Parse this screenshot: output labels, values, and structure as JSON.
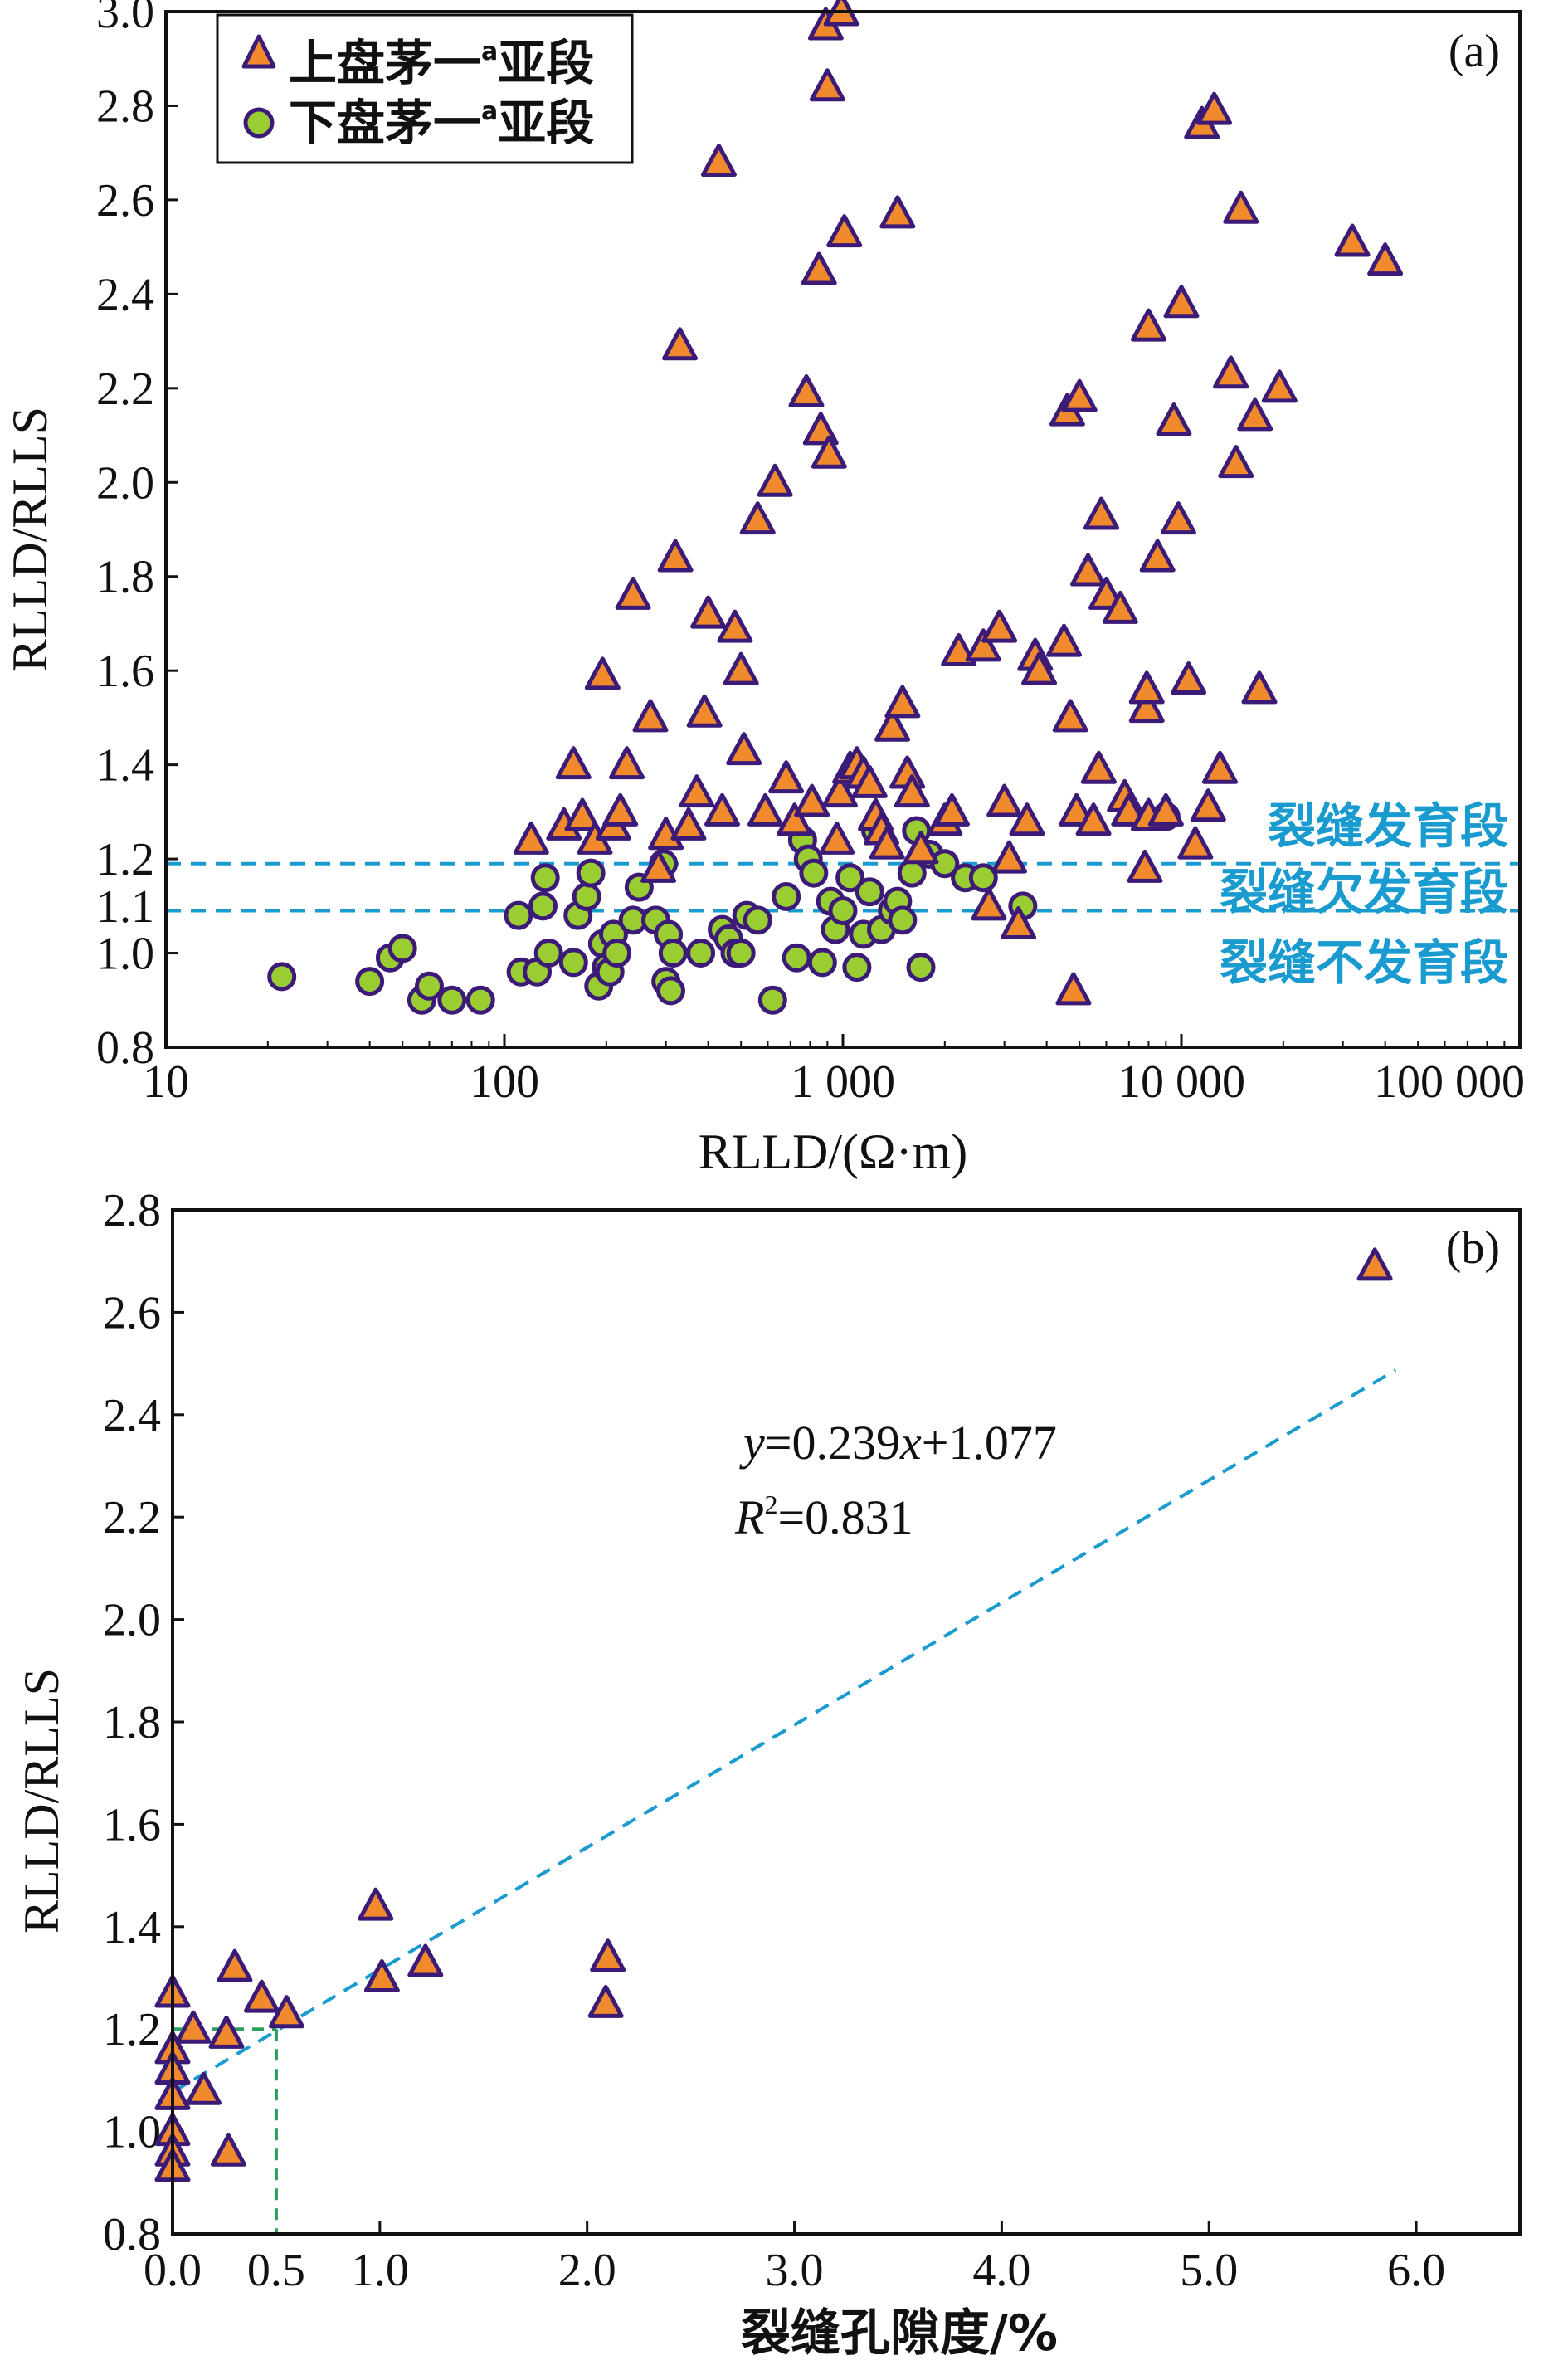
{
  "colors": {
    "triangle_fill": "#f08a2c",
    "triangle_stroke": "#3c1a78",
    "circle_fill": "#9acd32",
    "circle_stroke": "#3c1a78",
    "threshold_line": "#1a9bd0",
    "zone_text": "#1a9bd0",
    "highlight_red": "#c0143c",
    "vertical_guide": "#2aa05a"
  },
  "chart_data": [
    {
      "type": "scatter",
      "panel": "(a)",
      "xlabel": "RLLD/(Ω·m)",
      "ylabel": "RLLD/RLLS",
      "x_scale": "log",
      "xlim": [
        10,
        100000
      ],
      "ylim": [
        0.8,
        3.0
      ],
      "x_ticks": [
        {
          "value": 10,
          "label": "10"
        },
        {
          "value": 100,
          "label": "100"
        },
        {
          "value": 1000,
          "label": "1 000"
        },
        {
          "value": 10000,
          "label": "10 000"
        },
        {
          "value": 100000,
          "label": "100 000"
        }
      ],
      "y_ticks": [
        {
          "value": 0.8,
          "label": "0.8"
        },
        {
          "value": 1.0,
          "label": "1.0"
        },
        {
          "value": 1.2,
          "label": "1.2"
        },
        {
          "value": 1.4,
          "label": "1.4"
        },
        {
          "value": 1.6,
          "label": "1.6"
        },
        {
          "value": 1.8,
          "label": "1.8"
        },
        {
          "value": 2.0,
          "label": "2.0"
        },
        {
          "value": 2.2,
          "label": "2.2"
        },
        {
          "value": 2.4,
          "label": "2.4"
        },
        {
          "value": 2.6,
          "label": "2.6"
        },
        {
          "value": 2.8,
          "label": "2.8"
        },
        {
          "value": 3.0,
          "label": "3.0"
        }
      ],
      "extra_y_label": {
        "value": 1.1,
        "label": "1.1"
      },
      "threshold_lines": [
        1.19,
        1.09
      ],
      "zone_labels": [
        {
          "text": "裂缝发育段",
          "y": 1.27
        },
        {
          "text": "裂缝欠发育段",
          "y": 1.13
        },
        {
          "text": "裂缝不发育段",
          "y": 0.98
        }
      ],
      "legend": {
        "entries": [
          {
            "marker": "triangle",
            "name": "上盘茅一",
            "sup": "a",
            "suffix": "亚段"
          },
          {
            "marker": "circle",
            "name": "下盘茅一",
            "sup": "a",
            "suffix": "亚段"
          }
        ],
        "placement": "top-left"
      },
      "series": [
        {
          "name": "上盘茅一ª亚段",
          "marker": "triangle",
          "points": [
            [
              120,
              1.24
            ],
            [
              150,
              1.27
            ],
            [
              160,
              1.4
            ],
            [
              170,
              1.29
            ],
            [
              185,
              1.24
            ],
            [
              195,
              1.59
            ],
            [
              210,
              1.27
            ],
            [
              220,
              1.3
            ],
            [
              230,
              1.4
            ],
            [
              240,
              1.76
            ],
            [
              270,
              1.5
            ],
            [
              285,
              1.18
            ],
            [
              300,
              1.25
            ],
            [
              320,
              1.84
            ],
            [
              330,
              2.29
            ],
            [
              350,
              1.27
            ],
            [
              370,
              1.34
            ],
            [
              390,
              1.51
            ],
            [
              400,
              1.72
            ],
            [
              430,
              2.68
            ],
            [
              440,
              1.3
            ],
            [
              480,
              1.69
            ],
            [
              500,
              1.6
            ],
            [
              510,
              1.43
            ],
            [
              560,
              1.92
            ],
            [
              590,
              1.3
            ],
            [
              630,
              2.0
            ],
            [
              680,
              1.37
            ],
            [
              720,
              1.28
            ],
            [
              780,
              2.19
            ],
            [
              810,
              1.32
            ],
            [
              850,
              2.45
            ],
            [
              860,
              2.11
            ],
            [
              890,
              2.97
            ],
            [
              900,
              2.84
            ],
            [
              910,
              2.06
            ],
            [
              960,
              1.24
            ],
            [
              980,
              1.34
            ],
            [
              990,
              3.0
            ],
            [
              1010,
              2.53
            ],
            [
              1050,
              1.39
            ],
            [
              1100,
              1.4
            ],
            [
              1150,
              1.38
            ],
            [
              1200,
              1.36
            ],
            [
              1250,
              1.29
            ],
            [
              1300,
              1.26
            ],
            [
              1350,
              1.23
            ],
            [
              1400,
              1.48
            ],
            [
              1450,
              2.57
            ],
            [
              1500,
              1.53
            ],
            [
              1550,
              1.38
            ],
            [
              1600,
              1.34
            ],
            [
              1700,
              1.22
            ],
            [
              2000,
              1.28
            ],
            [
              2100,
              1.3
            ],
            [
              2200,
              1.64
            ],
            [
              2600,
              1.65
            ],
            [
              2700,
              1.1
            ],
            [
              2900,
              1.69
            ],
            [
              3000,
              1.32
            ],
            [
              3100,
              1.2
            ],
            [
              3300,
              1.06
            ],
            [
              3500,
              1.28
            ],
            [
              3700,
              1.63
            ],
            [
              3800,
              1.6
            ],
            [
              4500,
              1.66
            ],
            [
              4600,
              2.15
            ],
            [
              4700,
              1.5
            ],
            [
              4900,
              1.3
            ],
            [
              5000,
              2.18
            ],
            [
              5300,
              1.81
            ],
            [
              5500,
              1.28
            ],
            [
              5700,
              1.39
            ],
            [
              5800,
              1.93
            ],
            [
              6000,
              1.76
            ],
            [
              6600,
              1.73
            ],
            [
              6800,
              1.33
            ],
            [
              7000,
              1.3
            ],
            [
              7800,
              1.18
            ],
            [
              7900,
              1.52
            ],
            [
              8000,
              1.29
            ],
            [
              8000,
              2.33
            ],
            [
              8500,
              1.84
            ],
            [
              9000,
              1.3
            ],
            [
              9500,
              2.13
            ],
            [
              9800,
              1.92
            ],
            [
              10000,
              2.38
            ],
            [
              10500,
              1.58
            ],
            [
              11000,
              1.23
            ],
            [
              11500,
              2.76
            ],
            [
              12000,
              1.31
            ],
            [
              12500,
              2.79
            ],
            [
              13000,
              1.39
            ],
            [
              14000,
              2.23
            ],
            [
              14500,
              2.04
            ],
            [
              15000,
              2.58
            ],
            [
              16500,
              2.14
            ],
            [
              17000,
              1.56
            ],
            [
              19500,
              2.2
            ],
            [
              32000,
              2.51
            ],
            [
              40000,
              2.47
            ],
            [
              4800,
              0.92
            ],
            [
              7900,
              1.56
            ]
          ]
        },
        {
          "name": "下盘茅一ª亚段",
          "marker": "circle",
          "points": [
            [
              22,
              0.95
            ],
            [
              40,
              0.94
            ],
            [
              46,
              0.99
            ],
            [
              50,
              1.01
            ],
            [
              57,
              0.9
            ],
            [
              60,
              0.93
            ],
            [
              70,
              0.9
            ],
            [
              85,
              0.9
            ],
            [
              110,
              1.08
            ],
            [
              112,
              0.96
            ],
            [
              125,
              0.96
            ],
            [
              130,
              1.1
            ],
            [
              132,
              1.16
            ],
            [
              135,
              1.0
            ],
            [
              160,
              0.98
            ],
            [
              165,
              1.08
            ],
            [
              175,
              1.12
            ],
            [
              180,
              1.17
            ],
            [
              190,
              0.93
            ],
            [
              195,
              1.02
            ],
            [
              200,
              0.97
            ],
            [
              205,
              0.96
            ],
            [
              210,
              1.04
            ],
            [
              215,
              1.0
            ],
            [
              240,
              1.07
            ],
            [
              250,
              1.14
            ],
            [
              280,
              1.07
            ],
            [
              295,
              1.19
            ],
            [
              300,
              0.94
            ],
            [
              305,
              1.04
            ],
            [
              310,
              0.92
            ],
            [
              315,
              1.0
            ],
            [
              380,
              1.0
            ],
            [
              440,
              1.05
            ],
            [
              460,
              1.03
            ],
            [
              480,
              1.0
            ],
            [
              500,
              1.0
            ],
            [
              520,
              1.08
            ],
            [
              560,
              1.07
            ],
            [
              620,
              0.9
            ],
            [
              680,
              1.12
            ],
            [
              730,
              0.99
            ],
            [
              760,
              1.24
            ],
            [
              790,
              1.2
            ],
            [
              820,
              1.17
            ],
            [
              870,
              0.98
            ],
            [
              920,
              1.11
            ],
            [
              950,
              1.05
            ],
            [
              1000,
              1.09
            ],
            [
              1050,
              1.16
            ],
            [
              1100,
              0.97
            ],
            [
              1150,
              1.04
            ],
            [
              1200,
              1.13
            ],
            [
              1250,
              1.26
            ],
            [
              1300,
              1.05
            ],
            [
              1400,
              1.09
            ],
            [
              1450,
              1.11
            ],
            [
              1500,
              1.07
            ],
            [
              1600,
              1.17
            ],
            [
              1650,
              1.26
            ],
            [
              1700,
              0.97
            ],
            [
              1800,
              1.21
            ],
            [
              2000,
              1.19
            ],
            [
              2300,
              1.16
            ],
            [
              2600,
              1.16
            ],
            [
              3400,
              1.1
            ],
            [
              9000,
              1.29
            ]
          ]
        }
      ]
    },
    {
      "type": "scatter",
      "panel": "(b)",
      "xlabel": "裂缝孔隙度/%",
      "ylabel": "RLLD/RLLS",
      "xlim": [
        0.0,
        6.5
      ],
      "ylim": [
        0.8,
        2.8
      ],
      "x_ticks": [
        {
          "value": 0.0,
          "label": "0.0"
        },
        {
          "value": 1.0,
          "label": "1.0"
        },
        {
          "value": 2.0,
          "label": "2.0"
        },
        {
          "value": 3.0,
          "label": "3.0"
        },
        {
          "value": 4.0,
          "label": "4.0"
        },
        {
          "value": 5.0,
          "label": "5.0"
        },
        {
          "value": 6.0,
          "label": "6.0"
        }
      ],
      "extra_x_label": {
        "value": 0.5,
        "label": "0.5"
      },
      "y_ticks": [
        {
          "value": 0.8,
          "label": "0.8"
        },
        {
          "value": 1.0,
          "label": "1.0"
        },
        {
          "value": 1.2,
          "label": "1.2"
        },
        {
          "value": 1.4,
          "label": "1.4"
        },
        {
          "value": 1.6,
          "label": "1.6"
        },
        {
          "value": 1.8,
          "label": "1.8"
        },
        {
          "value": 2.0,
          "label": "2.0"
        },
        {
          "value": 2.2,
          "label": "2.2"
        },
        {
          "value": 2.4,
          "label": "2.4"
        },
        {
          "value": 2.6,
          "label": "2.6"
        },
        {
          "value": 2.8,
          "label": "2.8"
        }
      ],
      "fit": {
        "slope": 0.239,
        "intercept": 1.077,
        "x_range": [
          0.0,
          5.9
        ]
      },
      "equation": {
        "y_var": "y",
        "eq1": "=0.239",
        "x_var": "x",
        "eq2": "+1.077",
        "r_var": "R",
        "r_sup": "2",
        "r_eq": "=0.831"
      },
      "guide": {
        "x": 0.5,
        "y": 1.2
      },
      "series": [
        {
          "name": "",
          "marker": "triangle",
          "points": [
            [
              0.0,
              1.27
            ],
            [
              0.0,
              1.16
            ],
            [
              0.0,
              1.12
            ],
            [
              0.0,
              1.07
            ],
            [
              0.0,
              1.0
            ],
            [
              0.0,
              0.96
            ],
            [
              0.0,
              0.93
            ],
            [
              0.1,
              1.2
            ],
            [
              0.15,
              1.08
            ],
            [
              0.26,
              1.19
            ],
            [
              0.27,
              0.96
            ],
            [
              0.3,
              1.32
            ],
            [
              0.43,
              1.26
            ],
            [
              0.55,
              1.23
            ],
            [
              0.98,
              1.44
            ],
            [
              1.01,
              1.3
            ],
            [
              1.22,
              1.33
            ],
            [
              2.09,
              1.25
            ],
            [
              2.1,
              1.34
            ],
            [
              5.8,
              2.69
            ]
          ]
        }
      ]
    }
  ]
}
